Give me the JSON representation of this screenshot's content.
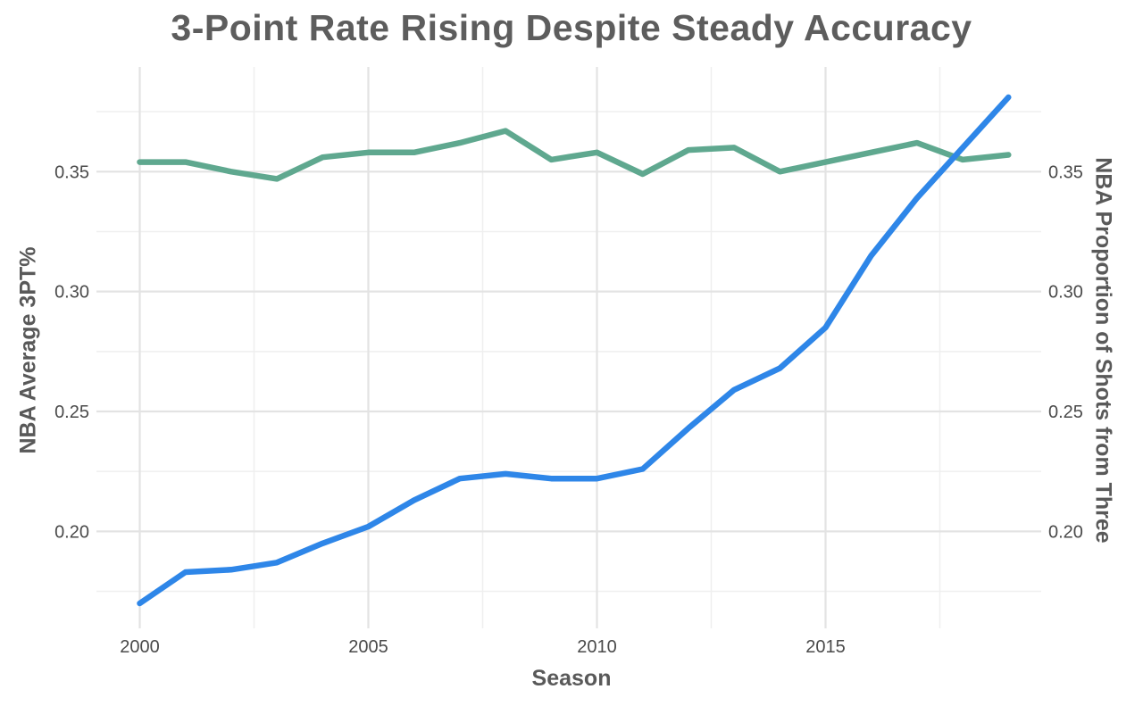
{
  "title": "3-Point Rate Rising Despite Steady Accuracy",
  "axes": {
    "x_title": "Season",
    "left_title": "NBA Average 3PT%",
    "right_title": "NBA Proportion of Shots from Three",
    "x_major_ticks": [
      2000,
      2005,
      2010,
      2015
    ],
    "x_minor_ticks": [
      2002.5,
      2007.5,
      2012.5,
      2017.5
    ],
    "y_major_ticks": [
      0.2,
      0.25,
      0.3,
      0.35
    ],
    "y_minor_ticks": [
      0.175,
      0.225,
      0.275,
      0.325,
      0.375
    ]
  },
  "colors": {
    "title_text": "#5d5d5d",
    "axis_title_text": "#595959",
    "tick_text": "#4a4a4a",
    "grid_major": "#e3e3e3",
    "grid_minor": "#efefef",
    "accuracy_line": "#5fa88f",
    "rate_line": "#2e86e8",
    "background": "#ffffff"
  },
  "chart_data": {
    "type": "line",
    "title": "3-Point Rate Rising Despite Steady Accuracy",
    "xlabel": "Season",
    "ylabel_left": "NBA Average 3PT%",
    "ylabel_right": "NBA Proportion of Shots from Three",
    "x": [
      2000,
      2001,
      2002,
      2003,
      2004,
      2005,
      2006,
      2007,
      2008,
      2009,
      2010,
      2011,
      2012,
      2013,
      2014,
      2015,
      2016,
      2017,
      2018,
      2019
    ],
    "series": [
      {
        "name": "NBA Average 3PT%",
        "color": "#5fa88f",
        "values": [
          0.354,
          0.354,
          0.35,
          0.347,
          0.356,
          0.358,
          0.358,
          0.362,
          0.367,
          0.355,
          0.358,
          0.349,
          0.359,
          0.36,
          0.35,
          0.354,
          0.358,
          0.362,
          0.355,
          0.357
        ]
      },
      {
        "name": "NBA Proportion of Shots from Three",
        "color": "#2e86e8",
        "values": [
          0.17,
          0.183,
          0.184,
          0.187,
          0.195,
          0.202,
          0.213,
          0.222,
          0.224,
          0.222,
          0.222,
          0.226,
          0.243,
          0.259,
          0.268,
          0.285,
          0.315,
          0.339,
          0.36,
          0.381
        ]
      }
    ],
    "xlim": [
      1999.05,
      2019.95
    ],
    "ylim": [
      0.1595,
      0.392
    ],
    "x_ticks": [
      2000,
      2005,
      2010,
      2015
    ],
    "y_ticks": [
      0.2,
      0.25,
      0.3,
      0.35
    ],
    "grid": "major-and-minor",
    "legend_position": "none"
  }
}
